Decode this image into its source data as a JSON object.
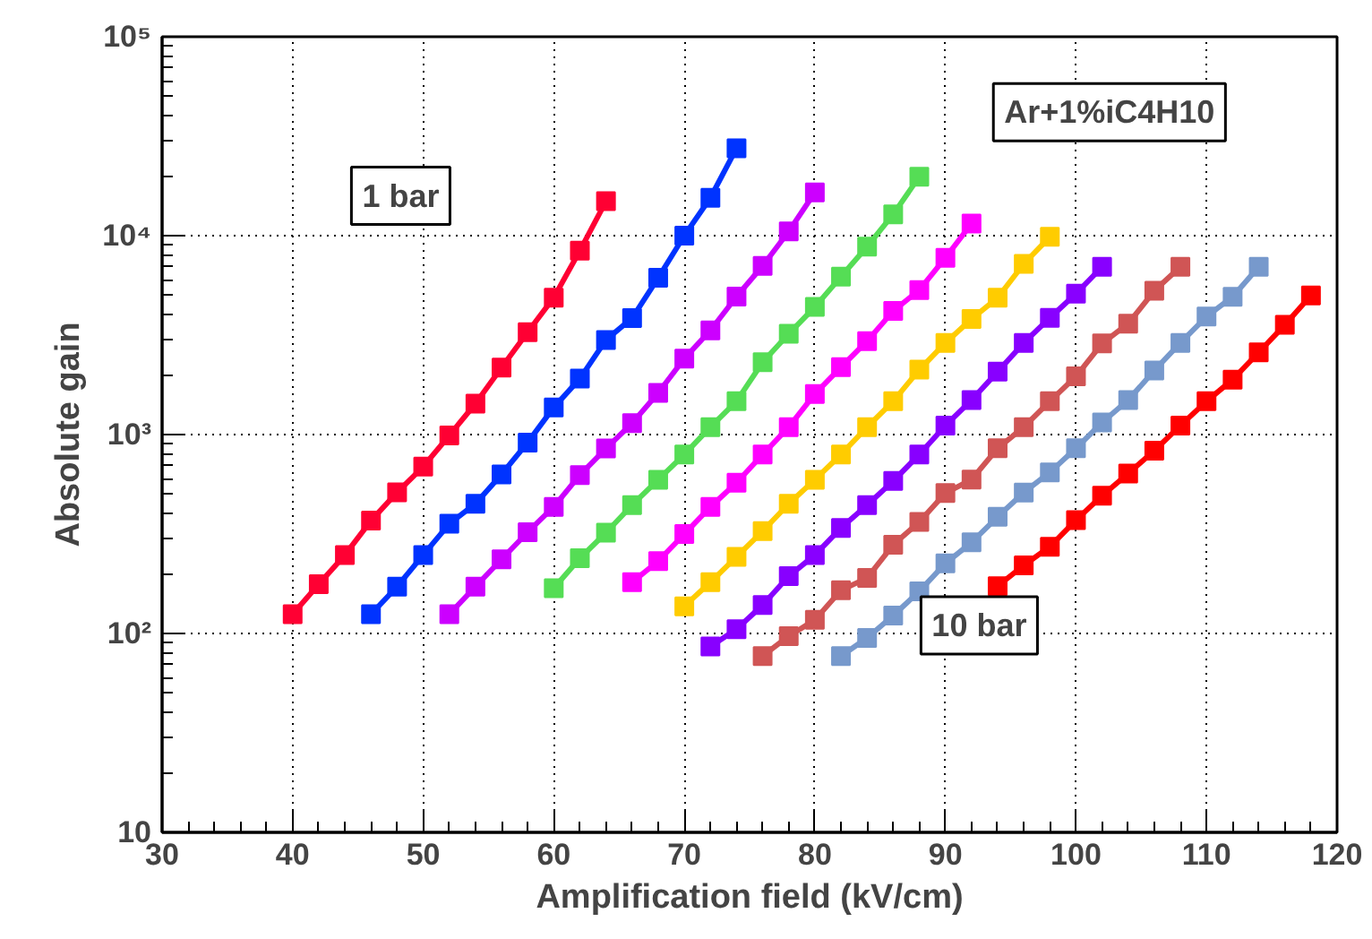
{
  "chart_data": {
    "type": "line",
    "xlabel": "Amplification field (kV/cm)",
    "ylabel": "Absolute gain",
    "log": "y",
    "grid": true,
    "marker": "square",
    "line_style": "solid",
    "xlim": [
      30,
      120
    ],
    "xticks": [
      30,
      40,
      50,
      60,
      70,
      80,
      90,
      100,
      110,
      120
    ],
    "ylim": [
      10,
      100000
    ],
    "yticks": [
      10,
      {
        "value": 100,
        "label": "10²"
      },
      {
        "value": 1000,
        "label": "10³"
      },
      {
        "value": 10000,
        "label": "10⁴"
      },
      {
        "value": 100000,
        "label": "10⁵"
      }
    ],
    "annotations": [
      "Ar+1%iC4H10",
      "1 bar",
      "10 bar"
    ],
    "series": [
      {
        "color": "#ff0033",
        "x": [
          40,
          42,
          44,
          46,
          48,
          50,
          52,
          54,
          56,
          58,
          60,
          62,
          64
        ],
        "values": [
          125,
          177,
          248,
          369,
          512,
          690,
          990,
          1430,
          2170,
          3270,
          4880,
          8400,
          14900
        ]
      },
      {
        "color": "#0033ff",
        "x": [
          46,
          48,
          50,
          52,
          54,
          56,
          58,
          60,
          62,
          64,
          66,
          68,
          70,
          72,
          74
        ],
        "values": [
          125,
          172,
          248,
          356,
          449,
          631,
          912,
          1370,
          1910,
          2990,
          3850,
          6140,
          10000,
          15500,
          27500
        ]
      },
      {
        "color": "#cc00ff",
        "x": [
          52,
          54,
          56,
          58,
          60,
          62,
          64,
          66,
          68,
          70,
          72,
          74,
          76,
          78,
          80
        ],
        "values": [
          125,
          172,
          236,
          323,
          433,
          626,
          851,
          1140,
          1620,
          2410,
          3340,
          4940,
          7050,
          10500,
          16500
        ]
      },
      {
        "color": "#55dd55",
        "x": [
          60,
          62,
          64,
          66,
          68,
          70,
          72,
          74,
          76,
          78,
          80,
          82,
          84,
          86,
          88
        ],
        "values": [
          169,
          239,
          321,
          442,
          593,
          794,
          1090,
          1470,
          2310,
          3210,
          4380,
          6220,
          8810,
          12800,
          19800
        ]
      },
      {
        "color": "#ff00ff",
        "x": [
          66,
          68,
          70,
          72,
          74,
          76,
          78,
          80,
          82,
          84,
          86,
          88,
          90,
          92
        ],
        "values": [
          181,
          231,
          316,
          433,
          573,
          794,
          1090,
          1600,
          2180,
          2950,
          4180,
          5330,
          7740,
          11500
        ]
      },
      {
        "color": "#ffcc00",
        "x": [
          70,
          72,
          74,
          76,
          78,
          80,
          82,
          84,
          86,
          88,
          90,
          92,
          94,
          96,
          98
        ],
        "values": [
          137,
          181,
          243,
          327,
          449,
          593,
          794,
          1090,
          1470,
          2120,
          2890,
          3810,
          4870,
          7210,
          9860
        ]
      },
      {
        "color": "#8800ff",
        "x": [
          72,
          74,
          76,
          78,
          80,
          82,
          84,
          86,
          88,
          90,
          92,
          94,
          96,
          98,
          100,
          102
        ],
        "values": [
          86,
          105,
          139,
          194,
          248,
          339,
          442,
          584,
          794,
          1110,
          1490,
          2070,
          2890,
          3860,
          5110,
          6970
        ]
      },
      {
        "color": "#d05555",
        "x": [
          76,
          78,
          80,
          82,
          84,
          86,
          88,
          90,
          92,
          94,
          96,
          98,
          100,
          102,
          104,
          106,
          108
        ],
        "values": [
          77,
          97,
          117,
          165,
          190,
          279,
          364,
          508,
          594,
          853,
          1090,
          1470,
          1960,
          2870,
          3610,
          5280,
          6970
        ]
      },
      {
        "color": "#7799cc",
        "x": [
          82,
          84,
          86,
          88,
          90,
          92,
          94,
          96,
          98,
          100,
          102,
          104,
          106,
          108,
          110,
          112,
          114
        ],
        "values": [
          77,
          95,
          123,
          163,
          225,
          287,
          386,
          511,
          646,
          853,
          1150,
          1490,
          2100,
          2890,
          3920,
          4930,
          6970
        ]
      },
      {
        "color": "#ff0000",
        "x": [
          94,
          96,
          98,
          100,
          102,
          104,
          106,
          108,
          110,
          112,
          114,
          116,
          118
        ],
        "values": [
          173,
          220,
          273,
          371,
          493,
          637,
          830,
          1110,
          1470,
          1890,
          2590,
          3560,
          5000
        ]
      }
    ]
  }
}
